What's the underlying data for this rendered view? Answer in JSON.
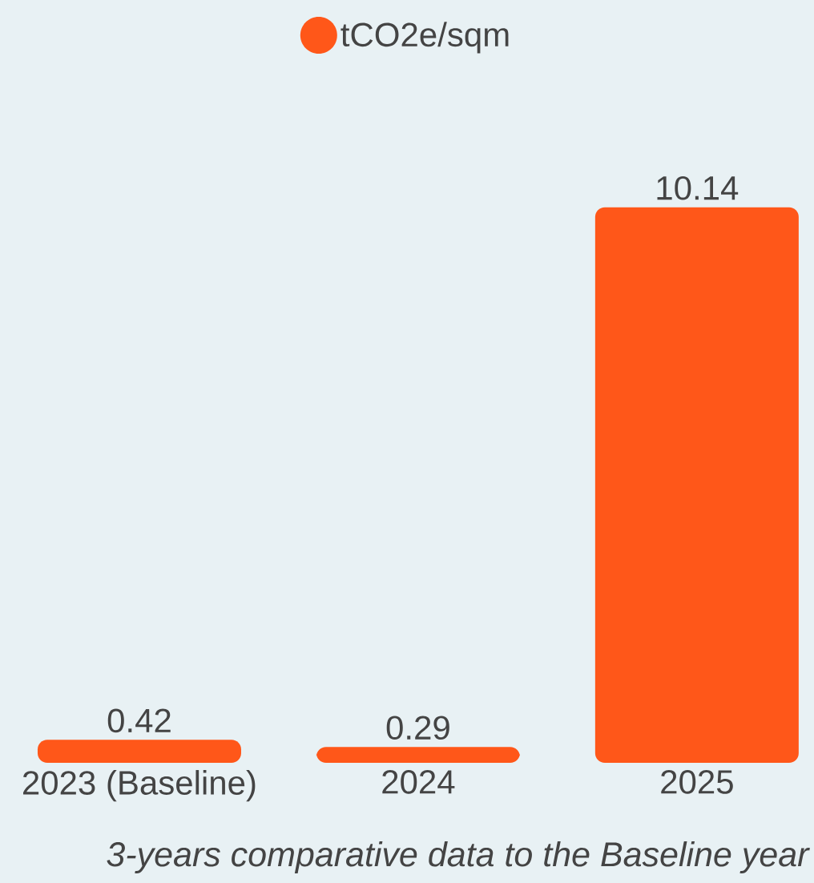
{
  "chart_data": {
    "type": "bar",
    "categories": [
      "2023 (Baseline)",
      "2024",
      "2025"
    ],
    "series": [
      {
        "name": "tCO2e/sqm",
        "color": "#ff5719",
        "values": [
          0.42,
          0.29,
          10.14
        ]
      }
    ],
    "data_labels": true,
    "legend": "top",
    "grid": false,
    "annotations": [
      "3-years comparative data to the Baseline year"
    ]
  }
}
